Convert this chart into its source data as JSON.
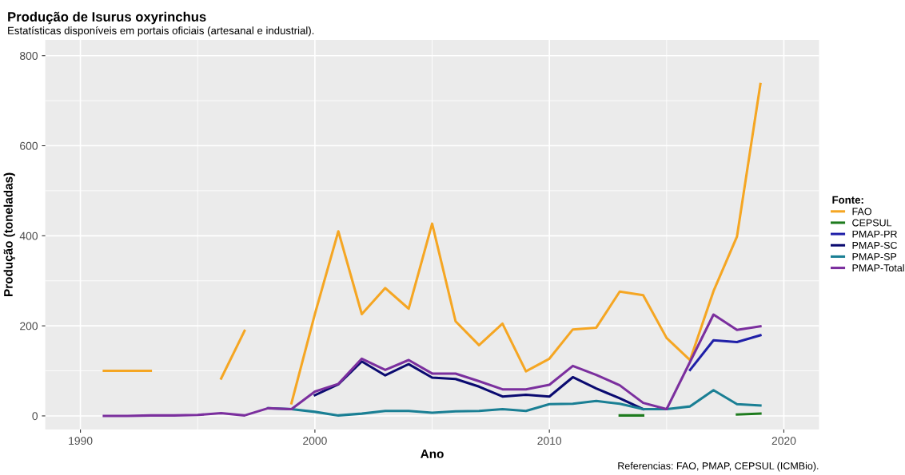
{
  "chart_data": {
    "type": "line",
    "title": "Produção de Isurus oxyrinchus",
    "subtitle": "Estatísticas disponíveis em portais oficiais (artesanal e industrial).",
    "xlabel": "Ano",
    "ylabel": "Produção (toneladas)",
    "legend_title": "Fonte:",
    "annotations": [
      "Referencias: FAO, PMAP, CEPSUL (ICMBio)."
    ],
    "x": [
      1991,
      1992,
      1993,
      1994,
      1995,
      1996,
      1997,
      1998,
      1999,
      2000,
      2001,
      2002,
      2003,
      2004,
      2005,
      2006,
      2007,
      2008,
      2009,
      2010,
      2011,
      2012,
      2013,
      2014,
      2015,
      2016,
      2017,
      2018,
      2019
    ],
    "series": [
      {
        "name": "FAO",
        "color": "#f5a623",
        "values": [
          100,
          100,
          100,
          null,
          null,
          83,
          189,
          null,
          28,
          226,
          410,
          226,
          284,
          238,
          427,
          210,
          157,
          205,
          99,
          127,
          192,
          196,
          276,
          268,
          173,
          124,
          277,
          398,
          737
        ]
      },
      {
        "name": "CEPSUL",
        "color": "#1e7b1e",
        "values": [
          null,
          null,
          null,
          null,
          null,
          null,
          null,
          null,
          null,
          null,
          null,
          null,
          null,
          null,
          null,
          null,
          null,
          null,
          null,
          null,
          null,
          null,
          1,
          1,
          null,
          null,
          null,
          3,
          5
        ]
      },
      {
        "name": "PMAP-PR",
        "color": "#2020a8",
        "values": [
          null,
          null,
          null,
          null,
          null,
          null,
          null,
          null,
          null,
          null,
          null,
          null,
          null,
          null,
          null,
          null,
          null,
          null,
          null,
          null,
          null,
          null,
          null,
          null,
          null,
          102,
          168,
          164,
          179
        ]
      },
      {
        "name": "PMAP-SC",
        "color": "#0a0a70",
        "values": [
          null,
          null,
          null,
          null,
          null,
          null,
          null,
          null,
          null,
          46,
          70,
          121,
          90,
          115,
          85,
          82,
          65,
          43,
          47,
          43,
          86,
          61,
          39,
          15,
          null,
          null,
          null,
          null,
          null
        ]
      },
      {
        "name": "PMAP-SP",
        "color": "#1a7f94",
        "values": [
          null,
          null,
          null,
          null,
          null,
          null,
          null,
          17,
          15,
          9,
          1,
          5,
          11,
          11,
          7,
          10,
          11,
          15,
          11,
          26,
          27,
          33,
          27,
          15,
          15,
          21,
          57,
          26,
          23
        ]
      },
      {
        "name": "PMAP-Total",
        "color": "#7b2f9e",
        "values": [
          0,
          0,
          1,
          1,
          2,
          6,
          1,
          17,
          15,
          54,
          71,
          127,
          102,
          124,
          94,
          94,
          77,
          59,
          59,
          69,
          111,
          91,
          68,
          29,
          15,
          120,
          225,
          191,
          199
        ]
      }
    ],
    "xlim": [
      1988.5,
      2021.5
    ],
    "ylim": [
      -30,
      835
    ],
    "xticks": [
      1990,
      2000,
      2010,
      2020
    ],
    "yticks": [
      0,
      200,
      400,
      600,
      800
    ],
    "grid": true,
    "legend": "right",
    "marker": "none",
    "line_style": "solid"
  }
}
